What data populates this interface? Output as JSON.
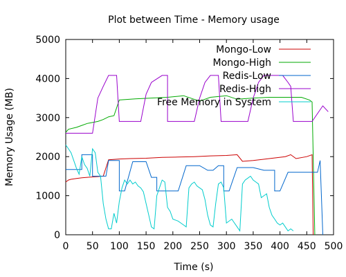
{
  "chart_data": {
    "type": "line",
    "title": "Plot between Time - Memory usage",
    "xlabel": "Time (s)",
    "ylabel": "Memory Usage (MB)",
    "xlim": [
      0,
      500
    ],
    "ylim": [
      0,
      5000
    ],
    "xticks": [
      "0",
      "50",
      "100",
      "150",
      "200",
      "250",
      "300",
      "350",
      "400",
      "450",
      "500"
    ],
    "yticks": [
      "0",
      "1000",
      "2000",
      "3000",
      "4000",
      "5000"
    ],
    "grid": false,
    "legend_position": "top-right",
    "series": [
      {
        "name": "Mongo-Low",
        "color": "#cc0000",
        "points": [
          [
            0,
            1350
          ],
          [
            5,
            1400
          ],
          [
            10,
            1420
          ],
          [
            20,
            1440
          ],
          [
            30,
            1460
          ],
          [
            40,
            1470
          ],
          [
            50,
            1480
          ],
          [
            60,
            1490
          ],
          [
            70,
            1500
          ],
          [
            80,
            1920
          ],
          [
            100,
            1940
          ],
          [
            120,
            1950
          ],
          [
            150,
            1960
          ],
          [
            180,
            1980
          ],
          [
            210,
            1990
          ],
          [
            240,
            2000
          ],
          [
            270,
            2020
          ],
          [
            300,
            2030
          ],
          [
            320,
            2050
          ],
          [
            330,
            1880
          ],
          [
            350,
            1900
          ],
          [
            380,
            1950
          ],
          [
            410,
            2000
          ],
          [
            420,
            2050
          ],
          [
            430,
            1950
          ],
          [
            450,
            2000
          ],
          [
            460,
            2050
          ],
          [
            462,
            0
          ]
        ]
      },
      {
        "name": "Mongo-High",
        "color": "#00aa00",
        "points": [
          [
            0,
            2620
          ],
          [
            5,
            2700
          ],
          [
            20,
            2750
          ],
          [
            30,
            2800
          ],
          [
            40,
            2850
          ],
          [
            60,
            2900
          ],
          [
            70,
            2950
          ],
          [
            80,
            3020
          ],
          [
            90,
            3050
          ],
          [
            100,
            3450
          ],
          [
            130,
            3480
          ],
          [
            160,
            3500
          ],
          [
            190,
            3520
          ],
          [
            220,
            3560
          ],
          [
            250,
            3420
          ],
          [
            270,
            3520
          ],
          [
            300,
            3560
          ],
          [
            320,
            3470
          ],
          [
            350,
            3500
          ],
          [
            380,
            3520
          ],
          [
            410,
            3520
          ],
          [
            440,
            3520
          ],
          [
            455,
            3450
          ],
          [
            460,
            3400
          ],
          [
            465,
            0
          ]
        ]
      },
      {
        "name": "Redis-Low",
        "color": "#0066cc",
        "points": [
          [
            0,
            1670
          ],
          [
            30,
            1670
          ],
          [
            30,
            2050
          ],
          [
            50,
            2050
          ],
          [
            50,
            1500
          ],
          [
            75,
            1500
          ],
          [
            80,
            1900
          ],
          [
            100,
            1900
          ],
          [
            100,
            1120
          ],
          [
            110,
            1120
          ],
          [
            125,
            1870
          ],
          [
            150,
            1870
          ],
          [
            160,
            1470
          ],
          [
            170,
            1470
          ],
          [
            170,
            1120
          ],
          [
            210,
            1120
          ],
          [
            225,
            1770
          ],
          [
            250,
            1770
          ],
          [
            265,
            1650
          ],
          [
            275,
            1650
          ],
          [
            285,
            1770
          ],
          [
            295,
            1770
          ],
          [
            295,
            1120
          ],
          [
            305,
            1120
          ],
          [
            320,
            1720
          ],
          [
            350,
            1720
          ],
          [
            370,
            1650
          ],
          [
            390,
            1650
          ],
          [
            390,
            1120
          ],
          [
            400,
            1120
          ],
          [
            415,
            1600
          ],
          [
            440,
            1600
          ],
          [
            470,
            1600
          ],
          [
            475,
            1900
          ],
          [
            480,
            0
          ]
        ]
      },
      {
        "name": "Redis-High",
        "color": "#9900cc",
        "points": [
          [
            0,
            2600
          ],
          [
            50,
            2600
          ],
          [
            60,
            3500
          ],
          [
            70,
            3800
          ],
          [
            80,
            4080
          ],
          [
            90,
            4080
          ],
          [
            95,
            4080
          ],
          [
            100,
            2900
          ],
          [
            140,
            2900
          ],
          [
            150,
            3600
          ],
          [
            160,
            3900
          ],
          [
            180,
            4080
          ],
          [
            190,
            4080
          ],
          [
            190,
            2900
          ],
          [
            240,
            2900
          ],
          [
            250,
            3500
          ],
          [
            260,
            3900
          ],
          [
            270,
            4080
          ],
          [
            285,
            4080
          ],
          [
            290,
            2900
          ],
          [
            340,
            2900
          ],
          [
            350,
            3500
          ],
          [
            360,
            3900
          ],
          [
            370,
            4080
          ],
          [
            390,
            4080
          ],
          [
            405,
            4080
          ],
          [
            415,
            3900
          ],
          [
            420,
            3800
          ],
          [
            425,
            2900
          ],
          [
            460,
            2900
          ],
          [
            475,
            3200
          ],
          [
            480,
            3300
          ],
          [
            490,
            3150
          ]
        ]
      },
      {
        "name": "Free Memory in System",
        "color": "#00cccc",
        "points": [
          [
            0,
            2300
          ],
          [
            5,
            2200
          ],
          [
            10,
            2100
          ],
          [
            15,
            1900
          ],
          [
            20,
            1700
          ],
          [
            25,
            1550
          ],
          [
            30,
            2000
          ],
          [
            35,
            1800
          ],
          [
            40,
            1700
          ],
          [
            45,
            1500
          ],
          [
            50,
            2200
          ],
          [
            55,
            2100
          ],
          [
            60,
            1600
          ],
          [
            65,
            1500
          ],
          [
            70,
            800
          ],
          [
            75,
            400
          ],
          [
            80,
            150
          ],
          [
            85,
            150
          ],
          [
            90,
            550
          ],
          [
            95,
            300
          ],
          [
            100,
            850
          ],
          [
            105,
            1200
          ],
          [
            110,
            1400
          ],
          [
            115,
            1300
          ],
          [
            120,
            1400
          ],
          [
            125,
            1300
          ],
          [
            130,
            1350
          ],
          [
            135,
            1250
          ],
          [
            140,
            1200
          ],
          [
            145,
            1100
          ],
          [
            150,
            800
          ],
          [
            155,
            500
          ],
          [
            160,
            200
          ],
          [
            165,
            150
          ],
          [
            170,
            1000
          ],
          [
            175,
            1200
          ],
          [
            180,
            1400
          ],
          [
            185,
            1350
          ],
          [
            190,
            700
          ],
          [
            195,
            600
          ],
          [
            200,
            400
          ],
          [
            210,
            350
          ],
          [
            215,
            300
          ],
          [
            220,
            250
          ],
          [
            225,
            200
          ],
          [
            230,
            1200
          ],
          [
            235,
            1300
          ],
          [
            240,
            1350
          ],
          [
            245,
            1250
          ],
          [
            250,
            1200
          ],
          [
            255,
            1150
          ],
          [
            260,
            900
          ],
          [
            265,
            500
          ],
          [
            270,
            250
          ],
          [
            275,
            200
          ],
          [
            280,
            800
          ],
          [
            285,
            1300
          ],
          [
            290,
            1350
          ],
          [
            295,
            1200
          ],
          [
            300,
            300
          ],
          [
            310,
            400
          ],
          [
            320,
            200
          ],
          [
            325,
            100
          ],
          [
            330,
            1300
          ],
          [
            335,
            1400
          ],
          [
            340,
            1450
          ],
          [
            345,
            1500
          ],
          [
            350,
            1400
          ],
          [
            355,
            1350
          ],
          [
            360,
            1300
          ],
          [
            365,
            950
          ],
          [
            370,
            1000
          ],
          [
            375,
            1050
          ],
          [
            380,
            700
          ],
          [
            385,
            500
          ],
          [
            390,
            400
          ],
          [
            395,
            300
          ],
          [
            400,
            250
          ],
          [
            405,
            300
          ],
          [
            410,
            200
          ],
          [
            415,
            100
          ],
          [
            420,
            150
          ],
          [
            425,
            100
          ]
        ]
      }
    ]
  }
}
